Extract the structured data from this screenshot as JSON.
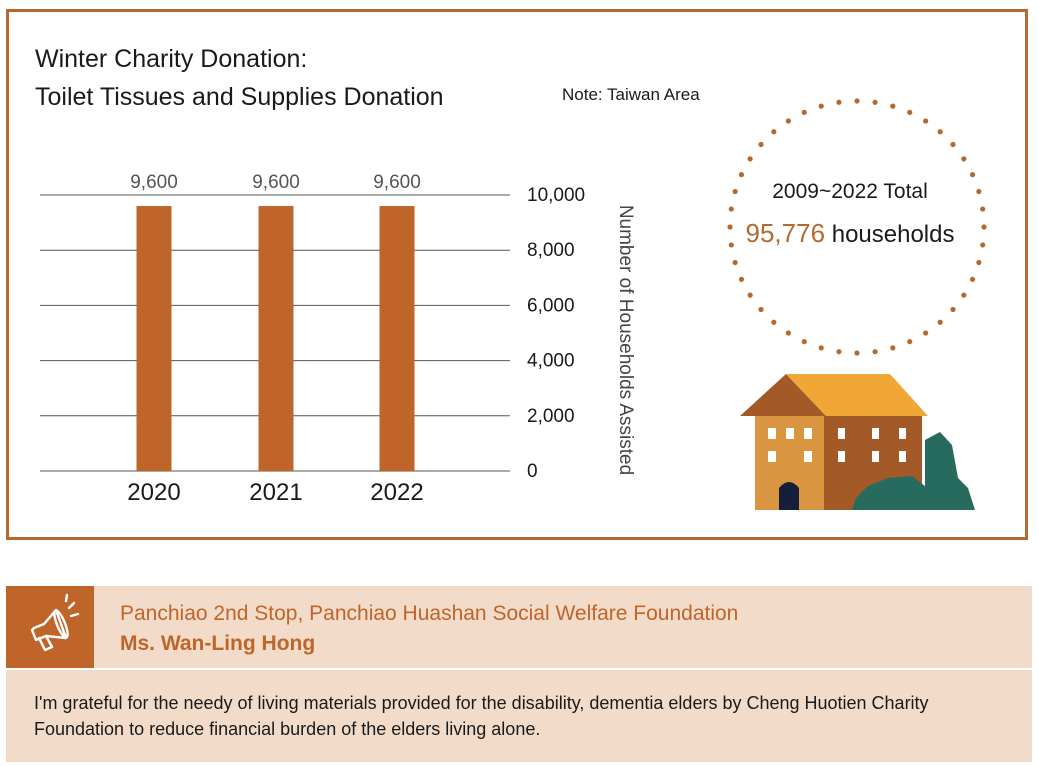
{
  "title_line1": "Winter Charity Donation:",
  "title_line2": "Toilet Tissues and Supplies Donation",
  "note": "Note: Taiwan Area",
  "total": {
    "period_label": "2009~2022 Total",
    "count": "95,776",
    "unit": "households"
  },
  "quote": {
    "organization": "Panchiao 2nd Stop, Panchiao Huashan Social Welfare Foundation",
    "person": "Ms. Wan-Ling Hong",
    "text": "I'm grateful for the needy of living materials provided for the disability, dementia elders by Cheng Huotien Charity Foundation to reduce financial burden of the elders living alone.",
    "icon": "megaphone-icon"
  },
  "colors": {
    "bar": "#c0652a",
    "accent": "#b5692e",
    "panel": "#f2dcc9",
    "roof": "#f0a735",
    "house_front": "#d9953f",
    "house_side": "#a35a27",
    "tree": "#266b5e",
    "door": "#14203b"
  },
  "chart_data": {
    "type": "bar",
    "title": "",
    "categories": [
      "2020",
      "2021",
      "2022"
    ],
    "values": [
      9600,
      9600,
      9600
    ],
    "value_labels": [
      "9,600",
      "9,600",
      "9,600"
    ],
    "xlabel": "",
    "ylabel": "Number of Households Assisted",
    "ylim": [
      0,
      10000
    ],
    "yticks": [
      0,
      2000,
      4000,
      6000,
      8000,
      10000
    ],
    "ytick_labels": [
      "0",
      "2,000",
      "4,000",
      "6,000",
      "8,000",
      "10,000"
    ],
    "y_axis_side": "right",
    "grid": true
  }
}
